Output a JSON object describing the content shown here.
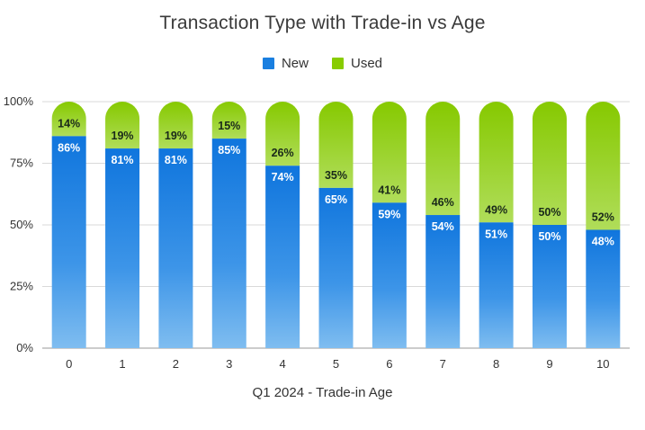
{
  "chart_data": {
    "type": "bar",
    "stacked": true,
    "title": "Transaction Type with Trade-in vs Age",
    "xlabel": "Q1 2024 - Trade-in Age",
    "ylabel": "",
    "categories": [
      "0",
      "1",
      "2",
      "3",
      "4",
      "5",
      "6",
      "7",
      "8",
      "9",
      "10"
    ],
    "series": [
      {
        "name": "New",
        "color": "#1a7fe0",
        "values": [
          86,
          81,
          81,
          85,
          74,
          65,
          59,
          54,
          51,
          50,
          48
        ]
      },
      {
        "name": "Used",
        "color": "#88cc00",
        "values": [
          14,
          19,
          19,
          15,
          26,
          35,
          41,
          46,
          49,
          50,
          52
        ]
      }
    ],
    "value_labels_new": [
      "86%",
      "81%",
      "81%",
      "85%",
      "74%",
      "65%",
      "59%",
      "54%",
      "51%",
      "50%",
      "48%"
    ],
    "value_labels_used": [
      "14%",
      "19%",
      "19%",
      "15%",
      "26%",
      "35%",
      "41%",
      "46%",
      "49%",
      "50%",
      "52%"
    ],
    "ylim": [
      0,
      100
    ],
    "yticks": [
      "0%",
      "25%",
      "50%",
      "75%",
      "100%"
    ],
    "grid": true,
    "legend_position": "top"
  }
}
